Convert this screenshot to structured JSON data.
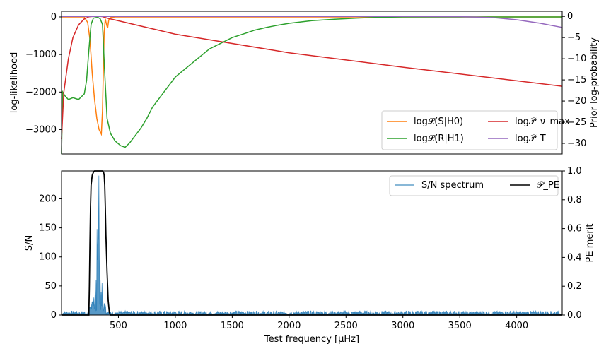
{
  "chart_data": [
    {
      "type": "line",
      "panel": "top",
      "xlim": [
        0,
        4400
      ],
      "ylabel_left": "log-likelihood",
      "ylabel_right": "Prior log-probability",
      "ylim_left": [
        -3650,
        150
      ],
      "ylim_right": [
        -32.5,
        1.2
      ],
      "yticks_left": [
        0,
        -1000,
        -2000,
        -3000
      ],
      "yticks_left_labels": [
        "0",
        "−1000",
        "−2000",
        "−3000"
      ],
      "yticks_right": [
        0,
        -5,
        -10,
        -15,
        -20,
        -25,
        -30
      ],
      "yticks_right_labels": [
        "0",
        "−5",
        "−10",
        "−15",
        "−20",
        "−25",
        "−30"
      ],
      "legend_position": "lower-right",
      "series": [
        {
          "name": "log𝓛(S|H0)",
          "color": "#ff7f0e",
          "axis": "left",
          "x": [
            0,
            200,
            230,
            250,
            270,
            290,
            310,
            330,
            350,
            360,
            375,
            385,
            395,
            405,
            415,
            430,
            470,
            600,
            1000,
            2000,
            3000,
            4400
          ],
          "y": [
            0,
            0,
            -150,
            -600,
            -1500,
            -2200,
            -2700,
            -3000,
            -3120,
            -2500,
            -400,
            -50,
            -200,
            -300,
            -80,
            -20,
            0,
            0,
            0,
            0,
            0,
            0
          ]
        },
        {
          "name": "log𝓛(R|H1)",
          "color": "#2ca02c",
          "axis": "left",
          "x": [
            0,
            10,
            30,
            60,
            100,
            150,
            200,
            220,
            240,
            260,
            280,
            300,
            320,
            340,
            360,
            380,
            400,
            430,
            470,
            520,
            560,
            600,
            650,
            700,
            750,
            800,
            900,
            1000,
            1100,
            1200,
            1300,
            1400,
            1500,
            1600,
            1700,
            1800,
            1900,
            2000,
            2200,
            2400,
            2600,
            2800,
            3000,
            3400,
            4400
          ],
          "y": [
            -3650,
            -2000,
            -2100,
            -2200,
            -2150,
            -2200,
            -2050,
            -1700,
            -900,
            -200,
            -30,
            -20,
            -10,
            -50,
            -200,
            -1500,
            -2700,
            -3100,
            -3300,
            -3430,
            -3470,
            -3350,
            -3150,
            -2950,
            -2700,
            -2400,
            -2000,
            -1600,
            -1350,
            -1100,
            -850,
            -700,
            -550,
            -450,
            -350,
            -280,
            -220,
            -170,
            -100,
            -60,
            -30,
            -10,
            0,
            0,
            0
          ]
        },
        {
          "name": "log𝒫_ν_max",
          "color": "#d62728",
          "axis": "right",
          "x": [
            0,
            20,
            60,
            100,
            150,
            200,
            240,
            280,
            300,
            320,
            340,
            360,
            400,
            1000,
            2000,
            3000,
            4400
          ],
          "y": [
            -29,
            -18,
            -10,
            -5,
            -2,
            -0.6,
            -0.1,
            0,
            0,
            0,
            0,
            -0.05,
            -0.4,
            -4.2,
            -8.6,
            -12.0,
            -16.5
          ]
        },
        {
          "name": "log𝒫_T",
          "color": "#9467bd",
          "axis": "right",
          "x": [
            0,
            500,
            1000,
            2000,
            3000,
            3500,
            3800,
            4000,
            4200,
            4400
          ],
          "y": [
            0,
            0,
            0,
            0,
            0,
            -0.05,
            -0.3,
            -0.8,
            -1.6,
            -2.6
          ]
        }
      ]
    },
    {
      "type": "line",
      "panel": "bottom",
      "xlabel": "Test frequency [μHz]",
      "xlim": [
        0,
        4400
      ],
      "xticks": [
        500,
        1000,
        1500,
        2000,
        2500,
        3000,
        3500,
        4000
      ],
      "xtick_labels": [
        "500",
        "1000",
        "1500",
        "2000",
        "2500",
        "3000",
        "3500",
        "4000"
      ],
      "ylabel_left": "S/N",
      "ylabel_right": "PE merit",
      "ylim_left": [
        0,
        248
      ],
      "ylim_right": [
        0,
        1.0
      ],
      "yticks_left": [
        0,
        50,
        100,
        150,
        200
      ],
      "yticks_left_labels": [
        "0",
        "50",
        "100",
        "150",
        "200"
      ],
      "yticks_right": [
        0.0,
        0.2,
        0.4,
        0.6,
        0.8,
        1.0
      ],
      "yticks_right_labels": [
        "0.0",
        "0.2",
        "0.4",
        "0.6",
        "0.8",
        "1.0"
      ],
      "legend_position": "upper-right",
      "series": [
        {
          "name": "S/N spectrum",
          "color": "#1f77b4",
          "axis": "left",
          "noise_level": 4,
          "peaks": [
            {
              "x": 250,
              "y": 12
            },
            {
              "x": 270,
              "y": 18
            },
            {
              "x": 285,
              "y": 30
            },
            {
              "x": 295,
              "y": 45
            },
            {
              "x": 305,
              "y": 60
            },
            {
              "x": 312,
              "y": 148
            },
            {
              "x": 318,
              "y": 95
            },
            {
              "x": 322,
              "y": 130
            },
            {
              "x": 327,
              "y": 240
            },
            {
              "x": 333,
              "y": 110
            },
            {
              "x": 340,
              "y": 60
            },
            {
              "x": 348,
              "y": 40
            },
            {
              "x": 356,
              "y": 55
            },
            {
              "x": 365,
              "y": 25
            },
            {
              "x": 375,
              "y": 15
            }
          ]
        },
        {
          "name": "𝒫_PE",
          "color": "#000000",
          "axis": "right",
          "x": [
            0,
            240,
            245,
            250,
            255,
            260,
            270,
            280,
            290,
            300,
            320,
            340,
            360,
            370,
            375,
            380,
            385,
            390,
            400,
            410,
            420,
            430,
            4400
          ],
          "y": [
            0,
            0,
            0.2,
            0.5,
            0.75,
            0.9,
            0.97,
            0.99,
            1.0,
            1.0,
            1.0,
            1.0,
            1.0,
            0.99,
            0.97,
            0.9,
            0.75,
            0.55,
            0.3,
            0.1,
            0.02,
            0,
            0
          ]
        }
      ]
    }
  ],
  "legend_top": [
    "log𝓛(S|H0)",
    "log𝒫_ν_max",
    "log𝓛(R|H1)",
    "log𝒫_T"
  ],
  "legend_bottom": [
    "S/N spectrum",
    "𝒫_PE"
  ]
}
